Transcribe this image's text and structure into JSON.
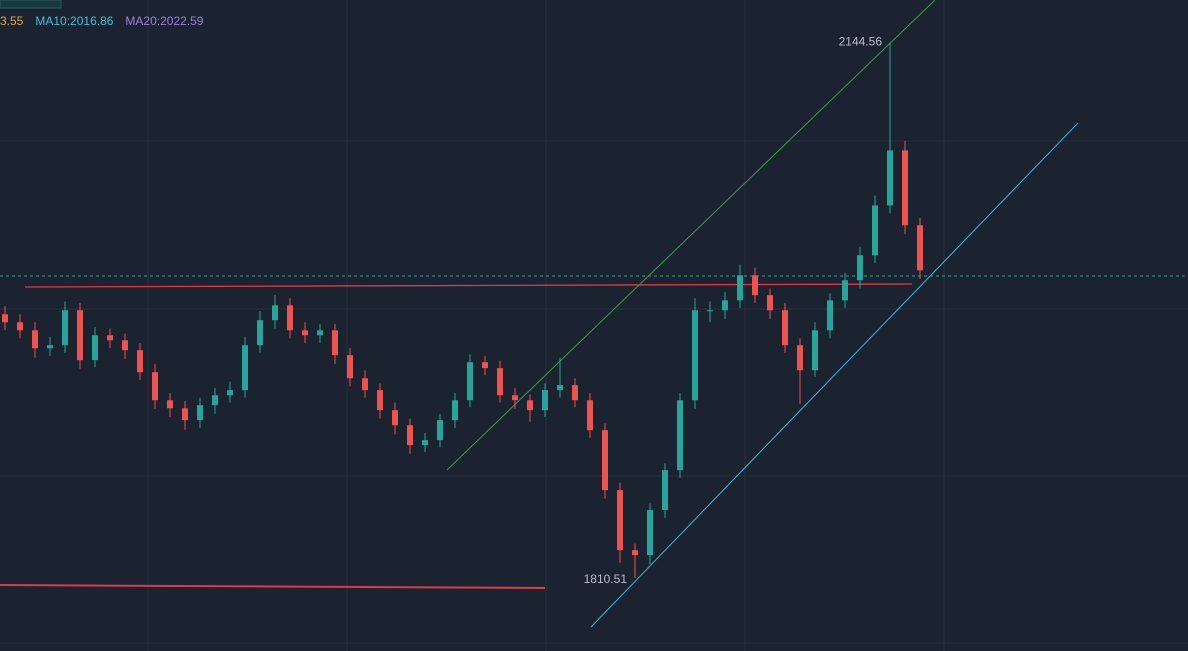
{
  "chart_data": {
    "type": "candlestick",
    "legend_labels": [
      {
        "text": "3.55",
        "color": "#e8a33d"
      },
      {
        "text": "MA10:2016.86",
        "color": "#3fc1d6"
      },
      {
        "text": "MA20:2022.59",
        "color": "#9b7fe0"
      }
    ],
    "up_color": "#26a69a",
    "down_color": "#ef5350",
    "ylim": [
      1765,
      2171
    ],
    "open": [
      1975.0,
      1970.0,
      1965.0,
      1953.8,
      1955.7,
      1977.5,
      1946.4,
      1961.9,
      1958.8,
      1952.6,
      1938.9,
      1921.4,
      1916.4,
      1909.0,
      1918.3,
      1924.5,
      1927.7,
      1955.7,
      1971.3,
      1980.6,
      1965.0,
      1961.9,
      1965.0,
      1949.5,
      1935.1,
      1927.7,
      1915.2,
      1905.8,
      1893.4,
      1896.5,
      1909.0,
      1921.4,
      1945.1,
      1941.4,
      1924.5,
      1921.4,
      1915.2,
      1927.7,
      1930.8,
      1921.4,
      1902.7,
      1865.3,
      1827.9,
      1824.8,
      1852.9,
      1877.8,
      1921.4,
      1977.5,
      1977.5,
      1983.7,
      1999.3,
      1986.9,
      1977.5,
      1955.7,
      1940.1,
      1965.0,
      1983.7,
      1996.2,
      2011.8,
      2042.9,
      2077.2,
      2030.5
    ],
    "high": [
      1980,
      1975,
      1970,
      1961,
      1983,
      1982,
      1967,
      1966,
      1963,
      1957,
      1944,
      1926,
      1921,
      1923,
      1929,
      1933,
      1961,
      1977,
      1987,
      1985,
      1970,
      1969,
      1969,
      1954,
      1940,
      1932,
      1920,
      1910,
      1901,
      1913,
      1926,
      1950,
      1949,
      1946,
      1929,
      1925,
      1932,
      1948,
      1935,
      1926,
      1907,
      1870,
      1832,
      1857,
      1882,
      1926,
      1985,
      1983,
      1989,
      2006,
      2004,
      1991,
      1982,
      1960,
      1970,
      1988,
      2001,
      2017,
      2049,
      2144.56,
      2083,
      2035
    ],
    "low": [
      1965,
      1960,
      1948,
      1949,
      1951,
      1941,
      1942,
      1954,
      1947,
      1934,
      1916,
      1911,
      1903,
      1904,
      1913,
      1920,
      1923,
      1951,
      1966,
      1960,
      1957,
      1957,
      1944,
      1930,
      1923,
      1910,
      1900,
      1888,
      1889,
      1892,
      1904,
      1917,
      1937,
      1920,
      1916,
      1908,
      1911,
      1923,
      1917,
      1898,
      1860,
      1820,
      1810.51,
      1819,
      1848,
      1873,
      1916,
      1970,
      1972,
      1979,
      1982,
      1972,
      1951,
      1919,
      1936,
      1960,
      1979,
      1991,
      2007,
      2038,
      2025,
      1997
    ],
    "close": [
      1970.0,
      1965.0,
      1953.8,
      1955.7,
      1977.5,
      1946.4,
      1961.9,
      1958.8,
      1952.6,
      1938.9,
      1921.4,
      1916.4,
      1909.0,
      1918.3,
      1924.5,
      1927.7,
      1955.7,
      1971.3,
      1980.6,
      1965.0,
      1961.9,
      1965.0,
      1949.5,
      1935.1,
      1927.7,
      1915.2,
      1905.8,
      1893.4,
      1896.5,
      1909.0,
      1921.4,
      1945.1,
      1941.4,
      1924.5,
      1921.4,
      1915.2,
      1927.7,
      1930.8,
      1921.4,
      1902.7,
      1865.3,
      1827.9,
      1824.8,
      1852.9,
      1877.8,
      1921.4,
      1977.5,
      1977.5,
      1983.7,
      1999.3,
      1986.9,
      1977.5,
      1955.7,
      1940.1,
      1965.0,
      1983.7,
      1996.2,
      2011.8,
      2042.9,
      2077.2,
      2030.5,
      2002.4
    ]
  }
}
